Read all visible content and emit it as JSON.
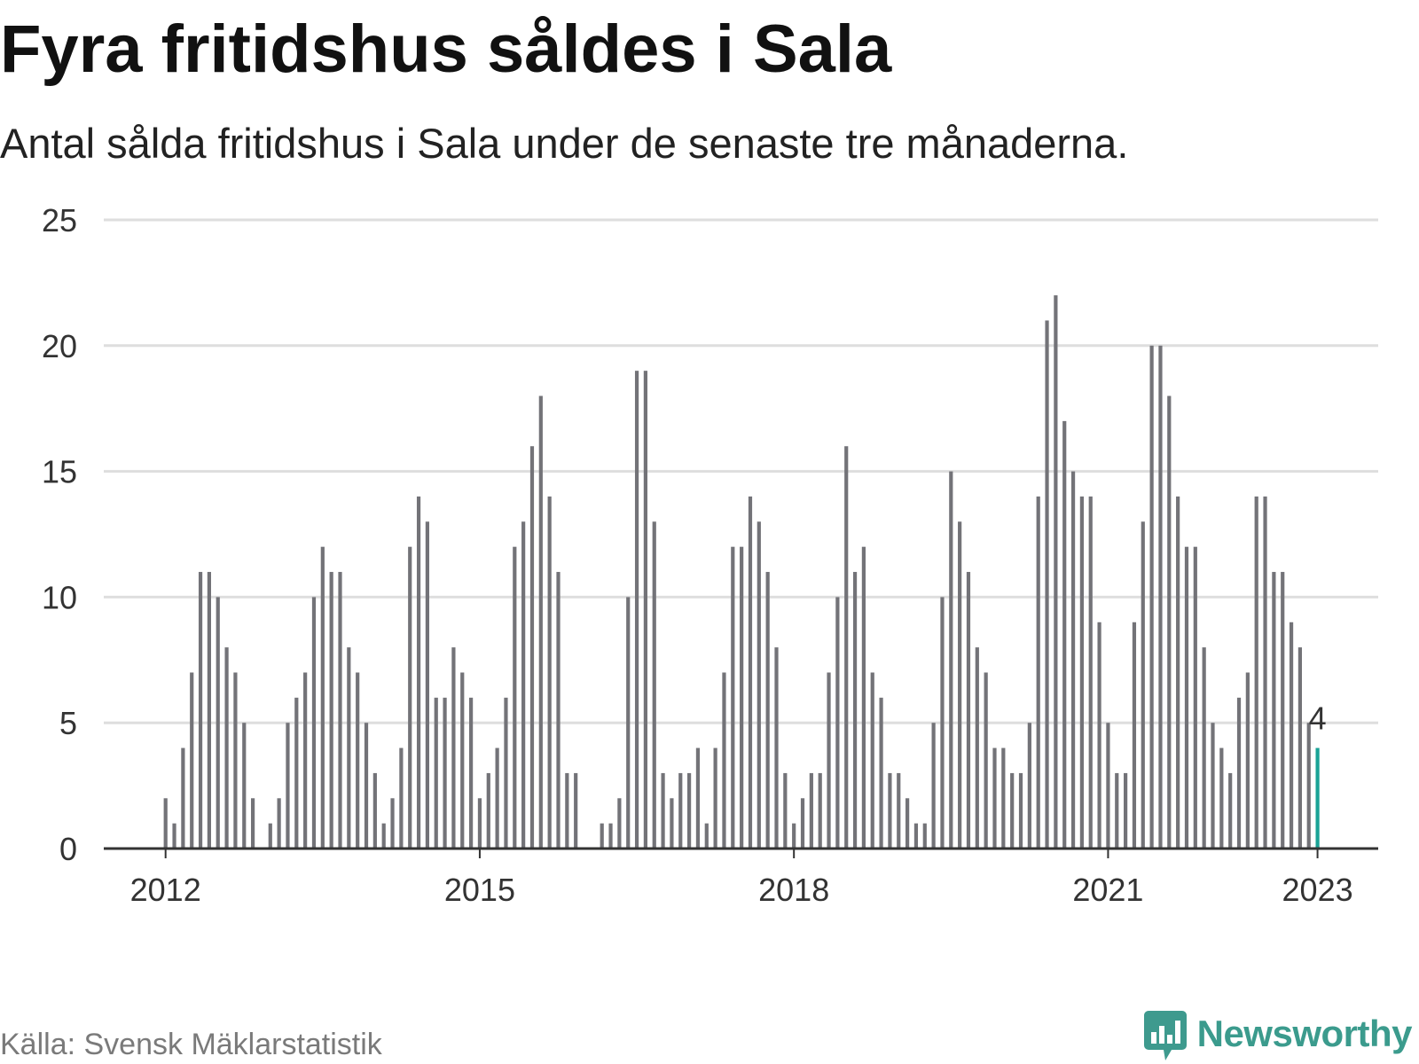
{
  "chart_data": {
    "type": "bar",
    "title": "Fyra fritidshus såldes i Sala",
    "subtitle": "Antal sålda fritidshus i Sala under de senaste tre månaderna.",
    "source": "Källa: Svensk Mäklarstatistik",
    "xlabel": "",
    "ylabel": "",
    "ylim": [
      0,
      25
    ],
    "yticks": [
      0,
      5,
      10,
      15,
      20,
      25
    ],
    "xticks": [
      "2012",
      "2015",
      "2018",
      "2021",
      "2023"
    ],
    "grid": true,
    "legend": "none",
    "x": [
      "2012-01",
      "2012-02",
      "2012-03",
      "2012-04",
      "2012-05",
      "2012-06",
      "2012-07",
      "2012-08",
      "2012-09",
      "2012-10",
      "2012-11",
      "2012-12",
      "2013-01",
      "2013-02",
      "2013-03",
      "2013-04",
      "2013-05",
      "2013-06",
      "2013-07",
      "2013-08",
      "2013-09",
      "2013-10",
      "2013-11",
      "2013-12",
      "2014-01",
      "2014-02",
      "2014-03",
      "2014-04",
      "2014-05",
      "2014-06",
      "2014-07",
      "2014-08",
      "2014-09",
      "2014-10",
      "2014-11",
      "2014-12",
      "2015-01",
      "2015-02",
      "2015-03",
      "2015-04",
      "2015-05",
      "2015-06",
      "2015-07",
      "2015-08",
      "2015-09",
      "2015-10",
      "2015-11",
      "2015-12",
      "2016-01",
      "2016-02",
      "2016-03",
      "2016-04",
      "2016-05",
      "2016-06",
      "2016-07",
      "2016-08",
      "2016-09",
      "2016-10",
      "2016-11",
      "2016-12",
      "2017-01",
      "2017-02",
      "2017-03",
      "2017-04",
      "2017-05",
      "2017-06",
      "2017-07",
      "2017-08",
      "2017-09",
      "2017-10",
      "2017-11",
      "2017-12",
      "2018-01",
      "2018-02",
      "2018-03",
      "2018-04",
      "2018-05",
      "2018-06",
      "2018-07",
      "2018-08",
      "2018-09",
      "2018-10",
      "2018-11",
      "2018-12",
      "2019-01",
      "2019-02",
      "2019-03",
      "2019-04",
      "2019-05",
      "2019-06",
      "2019-07",
      "2019-08",
      "2019-09",
      "2019-10",
      "2019-11",
      "2019-12",
      "2020-01",
      "2020-02",
      "2020-03",
      "2020-04",
      "2020-05",
      "2020-06",
      "2020-07",
      "2020-08",
      "2020-09",
      "2020-10",
      "2020-11",
      "2020-12",
      "2021-01",
      "2021-02",
      "2021-03",
      "2021-04",
      "2021-05",
      "2021-06",
      "2021-07",
      "2021-08",
      "2021-09",
      "2021-10",
      "2021-11",
      "2021-12",
      "2022-01",
      "2022-02",
      "2022-03",
      "2022-04",
      "2022-05",
      "2022-06",
      "2022-07",
      "2022-08",
      "2022-09",
      "2022-10",
      "2022-11",
      "2022-12",
      "2023-01"
    ],
    "values": [
      2,
      1,
      4,
      7,
      11,
      11,
      10,
      8,
      7,
      5,
      2,
      0,
      1,
      2,
      5,
      6,
      7,
      10,
      12,
      11,
      11,
      8,
      7,
      5,
      3,
      1,
      2,
      4,
      12,
      14,
      13,
      6,
      6,
      8,
      7,
      6,
      2,
      3,
      4,
      6,
      12,
      13,
      16,
      18,
      14,
      11,
      3,
      3,
      0,
      0,
      1,
      1,
      2,
      10,
      19,
      19,
      13,
      3,
      2,
      3,
      3,
      4,
      1,
      4,
      7,
      12,
      12,
      14,
      13,
      11,
      8,
      3,
      1,
      2,
      3,
      3,
      7,
      10,
      16,
      11,
      12,
      7,
      6,
      3,
      3,
      2,
      1,
      1,
      5,
      10,
      15,
      13,
      11,
      8,
      7,
      4,
      4,
      3,
      3,
      5,
      14,
      21,
      22,
      17,
      15,
      14,
      14,
      9,
      5,
      3,
      3,
      9,
      13,
      20,
      20,
      18,
      14,
      12,
      12,
      8,
      5,
      4,
      3,
      6,
      7,
      14,
      14,
      11,
      11,
      9,
      8,
      5,
      4
    ],
    "highlight": {
      "x": "2023-01",
      "label": "4"
    },
    "colors": {
      "bar": "#737378",
      "highlight": "#1aa396",
      "grid": "#dedede",
      "axis": "#333333"
    }
  },
  "brand": {
    "name": "Newsworthy",
    "icon": "newsworthy-logo-icon",
    "color": "#3b9b8d"
  }
}
